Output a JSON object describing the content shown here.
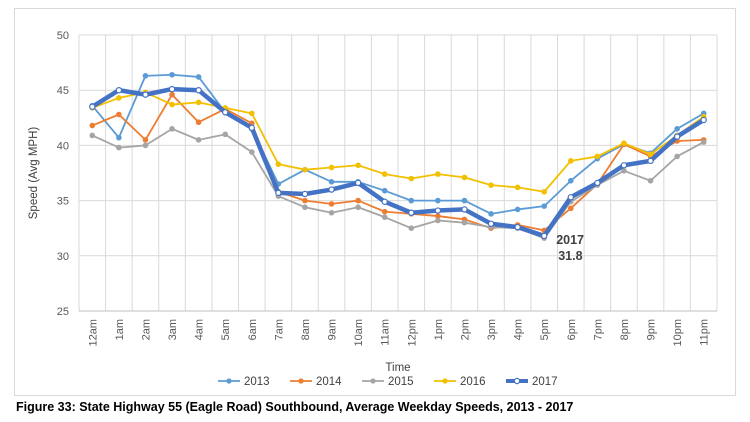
{
  "caption": "Figure 33: State Highway 55 (Eagle Road) Southbound, Average Weekday Speeds, 2013 - 2017",
  "chart_data": {
    "type": "line",
    "title": "",
    "xlabel": "Time",
    "ylabel": "Speed (Avg MPH)",
    "ylim": [
      25,
      50
    ],
    "yticks": [
      25,
      30,
      35,
      40,
      45,
      50
    ],
    "grid": true,
    "legend_position": "bottom",
    "categories": [
      "12am",
      "1am",
      "2am",
      "3am",
      "4am",
      "5am",
      "6am",
      "7am",
      "8am",
      "9am",
      "10am",
      "11am",
      "12pm",
      "1pm",
      "2pm",
      "3pm",
      "4pm",
      "5pm",
      "6pm",
      "7pm",
      "8pm",
      "9pm",
      "10pm",
      "11pm"
    ],
    "series": [
      {
        "name": "2013",
        "color": "#5b9bd5",
        "width": 1.8,
        "values": [
          43.6,
          40.7,
          46.3,
          46.4,
          46.2,
          43.0,
          41.5,
          36.5,
          37.8,
          36.7,
          36.7,
          35.9,
          35.0,
          35.0,
          35.0,
          33.8,
          34.2,
          34.5,
          36.8,
          38.8,
          40.1,
          39.3,
          41.5,
          42.9
        ]
      },
      {
        "name": "2014",
        "color": "#ed7d31",
        "width": 1.8,
        "values": [
          41.8,
          42.8,
          40.5,
          44.6,
          42.1,
          43.3,
          42.0,
          35.8,
          35.0,
          34.7,
          35.0,
          34.0,
          33.8,
          33.6,
          33.3,
          32.5,
          32.8,
          32.3,
          34.3,
          36.5,
          40.1,
          39.0,
          40.4,
          40.5
        ]
      },
      {
        "name": "2015",
        "color": "#a5a5a5",
        "width": 1.8,
        "values": [
          40.9,
          39.8,
          40.0,
          41.5,
          40.5,
          41.0,
          39.4,
          35.4,
          34.4,
          33.9,
          34.4,
          33.5,
          32.5,
          33.2,
          33.0,
          32.6,
          32.5,
          31.6,
          34.9,
          36.4,
          37.7,
          36.8,
          39.0,
          40.3
        ]
      },
      {
        "name": "2016",
        "color": "#f2c000",
        "width": 1.8,
        "values": [
          43.4,
          44.3,
          44.8,
          43.7,
          43.9,
          43.4,
          42.9,
          38.3,
          37.8,
          38.0,
          38.2,
          37.4,
          37.0,
          37.4,
          37.1,
          36.4,
          36.2,
          35.8,
          38.6,
          39.0,
          40.2,
          39.2,
          40.9,
          42.6
        ]
      },
      {
        "name": "2017",
        "color": "#4472c4",
        "width": 4.5,
        "values": [
          43.5,
          45.0,
          44.6,
          45.1,
          45.0,
          43.0,
          41.6,
          35.7,
          35.6,
          36.0,
          36.6,
          34.9,
          33.9,
          34.1,
          34.2,
          32.9,
          32.6,
          31.8,
          35.3,
          36.6,
          38.2,
          38.6,
          40.8,
          42.3
        ]
      }
    ],
    "annotations": [
      {
        "text": "2017",
        "category": "5pm",
        "series": "2017"
      },
      {
        "text": "31.8",
        "category": "5pm",
        "series": "2017"
      }
    ]
  }
}
